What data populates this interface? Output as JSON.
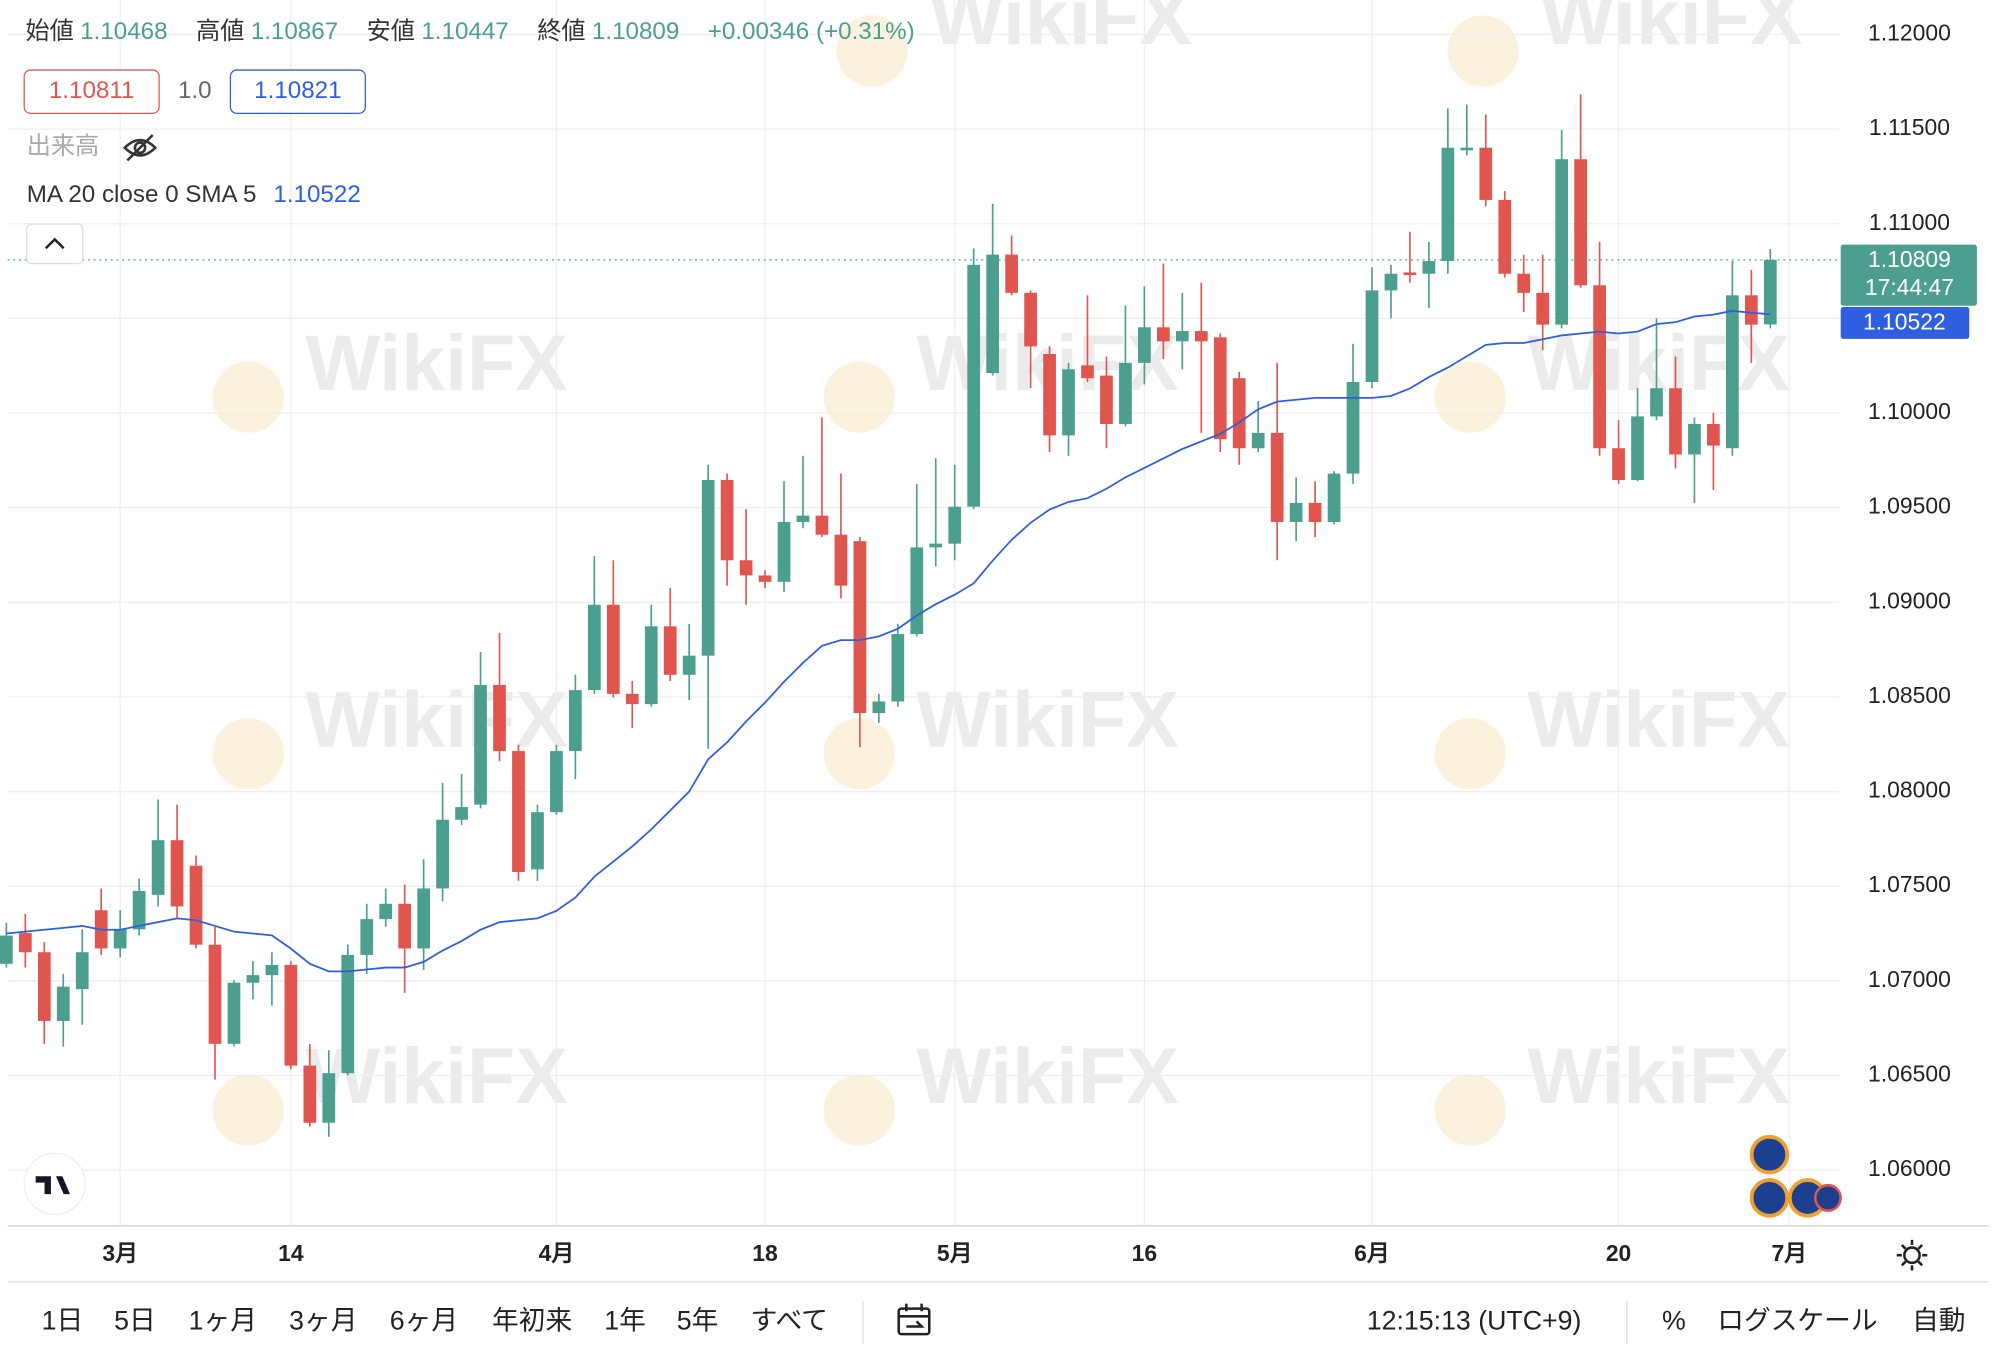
{
  "chart_data": {
    "type": "candlestick",
    "categories": [
      null,
      null,
      null,
      null,
      null,
      null,
      "3月",
      null,
      null,
      null,
      null,
      null,
      null,
      null,
      null,
      "14",
      null,
      null,
      null,
      null,
      null,
      null,
      null,
      null,
      null,
      null,
      null,
      null,
      null,
      "4月",
      null,
      null,
      null,
      null,
      null,
      null,
      null,
      null,
      null,
      null,
      "18",
      null,
      null,
      null,
      null,
      null,
      null,
      null,
      null,
      null,
      "5月",
      null,
      null,
      null,
      null,
      null,
      null,
      null,
      null,
      null,
      "16",
      null,
      null,
      null,
      null,
      null,
      null,
      null,
      null,
      null,
      null,
      null,
      "6月",
      null,
      null,
      null,
      null,
      null,
      null,
      null,
      null,
      null,
      null,
      null,
      null,
      "20",
      null,
      null,
      null,
      null,
      null,
      null,
      null,
      null,
      "7月"
    ],
    "open": [
      1.0709,
      1.07252,
      1.07151,
      1.06788,
      1.06956,
      1.07373,
      1.07171,
      1.07272,
      1.07454,
      1.07743,
      1.07608,
      1.07191,
      1.06667,
      1.0699,
      1.0703,
      1.07084,
      1.06552,
      1.0625,
      1.06512,
      1.07137,
      1.07326,
      1.07407,
      1.07171,
      1.07488,
      1.07851,
      1.07931,
      1.08563,
      1.08214,
      1.07589,
      1.07891,
      1.08214,
      1.08536,
      1.08987,
      1.08516,
      1.08462,
      1.08873,
      1.08617,
      1.08718,
      1.09646,
      1.09222,
      1.09142,
      1.09108,
      1.09424,
      1.09458,
      1.09357,
      1.09323,
      1.08415,
      1.08476,
      1.08832,
      1.0929,
      1.0931,
      1.09505,
      1.10211,
      1.10837,
      1.10635,
      1.10312,
      1.09882,
      1.10252,
      1.10198,
      1.09942,
      1.10265,
      1.10453,
      1.10379,
      1.10433,
      1.104,
      1.10184,
      1.09814,
      1.09895,
      1.09424,
      1.09525,
      1.09424,
      1.0968,
      1.10164,
      1.10648,
      1.10743,
      1.10736,
      1.10803,
      1.11388,
      1.11402,
      1.11126,
      1.10736,
      1.10635,
      1.10467,
      1.11341,
      1.10675,
      1.09814,
      1.09646,
      1.09982,
      1.10131,
      1.09781,
      1.09942,
      1.09814,
      1.10622,
      1.10468,
      null
    ],
    "high": [
      1.07306,
      1.07353,
      1.07205,
      1.07037,
      1.07272,
      1.07488,
      1.07373,
      1.07541,
      1.07958,
      1.07931,
      1.07662,
      1.07286,
      1.07003,
      1.07104,
      1.07151,
      1.07104,
      1.06667,
      1.06633,
      1.07191,
      1.07407,
      1.07488,
      1.07508,
      1.07642,
      1.08046,
      1.08093,
      1.08738,
      1.08839,
      1.08247,
      1.07931,
      1.08247,
      1.08617,
      1.09243,
      1.09222,
      1.08584,
      1.08987,
      1.09075,
      1.08886,
      1.09727,
      1.0968,
      1.09492,
      1.09169,
      1.0964,
      1.09774,
      1.09976,
      1.0968,
      1.09344,
      1.08516,
      1.08886,
      1.09626,
      1.09761,
      1.09727,
      1.1087,
      1.11106,
      1.10938,
      1.10648,
      1.10352,
      1.10265,
      1.10622,
      1.10299,
      1.10568,
      1.10669,
      1.1079,
      1.10635,
      1.10689,
      1.1042,
      1.10218,
      1.10063,
      1.10265,
      1.0966,
      1.0964,
      1.09693,
      1.10366,
      1.1077,
      1.10783,
      1.10958,
      1.10904,
      1.1161,
      1.1163,
      1.11577,
      1.11173,
      1.10837,
      1.10837,
      1.11496,
      1.11684,
      1.10904,
      1.09962,
      1.10131,
      1.10501,
      1.10299,
      1.09976,
      1.10002,
      1.10803,
      1.10756,
      1.10867,
      null
    ],
    "low": [
      1.0707,
      1.0707,
      1.06667,
      1.06653,
      1.06768,
      1.07137,
      1.07124,
      1.07239,
      1.07393,
      1.07326,
      1.07171,
      1.06478,
      1.06653,
      1.06902,
      1.06869,
      1.06532,
      1.0623,
      1.06176,
      1.06499,
      1.07037,
      1.07286,
      1.06936,
      1.07057,
      1.0742,
      1.07824,
      1.07911,
      1.0816,
      1.07528,
      1.07528,
      1.07877,
      1.08066,
      1.08516,
      1.08496,
      1.08335,
      1.08449,
      1.08584,
      1.08483,
      1.08227,
      1.09088,
      1.08987,
      1.09075,
      1.09054,
      1.09391,
      1.09344,
      1.09021,
      1.08234,
      1.08362,
      1.08449,
      1.08819,
      1.09189,
      1.09222,
      1.09492,
      1.10198,
      1.10622,
      1.10131,
      1.09794,
      1.09774,
      1.10164,
      1.09814,
      1.09929,
      1.10151,
      1.10285,
      1.10231,
      1.09895,
      1.09794,
      1.09727,
      1.09794,
      1.09222,
      1.09323,
      1.09344,
      1.09411,
      1.09626,
      1.10131,
      1.10501,
      1.10689,
      1.10554,
      1.10736,
      1.11361,
      1.11092,
      1.10716,
      1.10534,
      1.10332,
      1.10447,
      1.10662,
      1.09774,
      1.09626,
      1.0964,
      1.09962,
      1.09707,
      1.09525,
      1.09593,
      1.09774,
      1.10265,
      1.10447,
      null
    ],
    "close": [
      1.07239,
      1.07151,
      1.06788,
      1.06969,
      1.07151,
      1.07171,
      1.07272,
      1.07475,
      1.07743,
      1.07393,
      1.07191,
      1.06667,
      1.0699,
      1.0703,
      1.07084,
      1.06552,
      1.0625,
      1.06512,
      1.07137,
      1.07326,
      1.07407,
      1.07171,
      1.07488,
      1.07851,
      1.07918,
      1.08563,
      1.08214,
      1.07575,
      1.07891,
      1.08214,
      1.08536,
      1.08987,
      1.08516,
      1.08462,
      1.08873,
      1.08617,
      1.08718,
      1.09646,
      1.09222,
      1.09142,
      1.09108,
      1.09424,
      1.09458,
      1.09357,
      1.09088,
      1.08415,
      1.08476,
      1.08832,
      1.0929,
      1.0931,
      1.09505,
      1.10783,
      1.10837,
      1.10635,
      1.10352,
      1.09882,
      1.10231,
      1.10184,
      1.09942,
      1.10265,
      1.10453,
      1.10379,
      1.10433,
      1.10379,
      1.09862,
      1.09814,
      1.09895,
      1.09424,
      1.09525,
      1.09424,
      1.0968,
      1.10164,
      1.10648,
      1.10736,
      1.10729,
      1.10803,
      1.11402,
      1.11402,
      1.11126,
      1.10736,
      1.10635,
      1.10467,
      1.11341,
      1.10675,
      1.09814,
      1.09646,
      1.09982,
      1.10131,
      1.09781,
      1.09942,
      1.09828,
      1.10622,
      1.10467,
      1.10809,
      null
    ],
    "up_color": "#4c9f8f",
    "down_color": "#e0564f",
    "series": [
      {
        "name": "MA 20 close 0 SMA 5",
        "color": "#2f5fe0",
        "values": [
          1.0725,
          1.0726,
          1.0727,
          1.0728,
          1.0729,
          1.0727,
          1.0727,
          1.0729,
          1.0731,
          1.0733,
          1.0732,
          1.0729,
          1.0726,
          1.0725,
          1.0724,
          1.0717,
          1.0709,
          1.0705,
          1.0705,
          1.0706,
          1.0707,
          1.0707,
          1.071,
          1.0716,
          1.0721,
          1.0727,
          1.0731,
          1.0732,
          1.0733,
          1.0737,
          1.0744,
          1.0755,
          1.0763,
          1.0771,
          1.078,
          1.079,
          1.08,
          1.0817,
          1.0826,
          1.0837,
          1.0847,
          1.0858,
          1.0868,
          1.0877,
          1.088,
          1.088,
          1.0882,
          1.0886,
          1.0893,
          1.0899,
          1.0904,
          1.091,
          1.0922,
          1.0933,
          1.0942,
          1.0949,
          1.0953,
          1.0955,
          1.096,
          1.0966,
          1.0971,
          1.0976,
          1.0981,
          1.0985,
          1.0989,
          1.0995,
          1.1002,
          1.1006,
          1.1007,
          1.1008,
          1.1008,
          1.1008,
          1.1008,
          1.1009,
          1.1013,
          1.1019,
          1.1024,
          1.103,
          1.1036,
          1.1037,
          1.1037,
          1.1039,
          1.1041,
          1.1042,
          1.1043,
          1.1042,
          1.1043,
          1.1047,
          1.1048,
          1.1051,
          1.1052,
          1.1054,
          1.1053,
          1.10522,
          null
        ]
      }
    ],
    "ylim": [
      1.05705,
      1.12182
    ],
    "yticks": [
      {
        "value": 1.06,
        "label": "1.06000"
      },
      {
        "value": 1.065,
        "label": "1.06500"
      },
      {
        "value": 1.07,
        "label": "1.07000"
      },
      {
        "value": 1.075,
        "label": "1.07500"
      },
      {
        "value": 1.08,
        "label": "1.08000"
      },
      {
        "value": 1.085,
        "label": "1.08500"
      },
      {
        "value": 1.09,
        "label": "1.09000"
      },
      {
        "value": 1.095,
        "label": "1.09500"
      },
      {
        "value": 1.1,
        "label": "1.10000"
      },
      {
        "value": 1.105,
        "label": "1.10500"
      },
      {
        "value": 1.11,
        "label": "1.11000"
      },
      {
        "value": 1.115,
        "label": "1.11500"
      },
      {
        "value": 1.12,
        "label": "1.12000"
      }
    ],
    "grid": true
  },
  "ui": {
    "header_labels": [
      "始値",
      "高値",
      "安値",
      "終値"
    ],
    "change": "+0.00346 (+0.31%)",
    "buttons": [
      "1.10811",
      "1.0",
      "1.10821"
    ],
    "volume_label": "出来高",
    "countdown": "17:44:47",
    "ranges": [
      "1日",
      "5日",
      "1ヶ月",
      "3ヶ月",
      "6ヶ月",
      "年初来",
      "1年",
      "5年",
      "すべて"
    ],
    "clock": "12:15:13 (UTC+9)",
    "options": [
      "%",
      "ログスケール",
      "自動"
    ],
    "watermark": "WikiFX"
  }
}
